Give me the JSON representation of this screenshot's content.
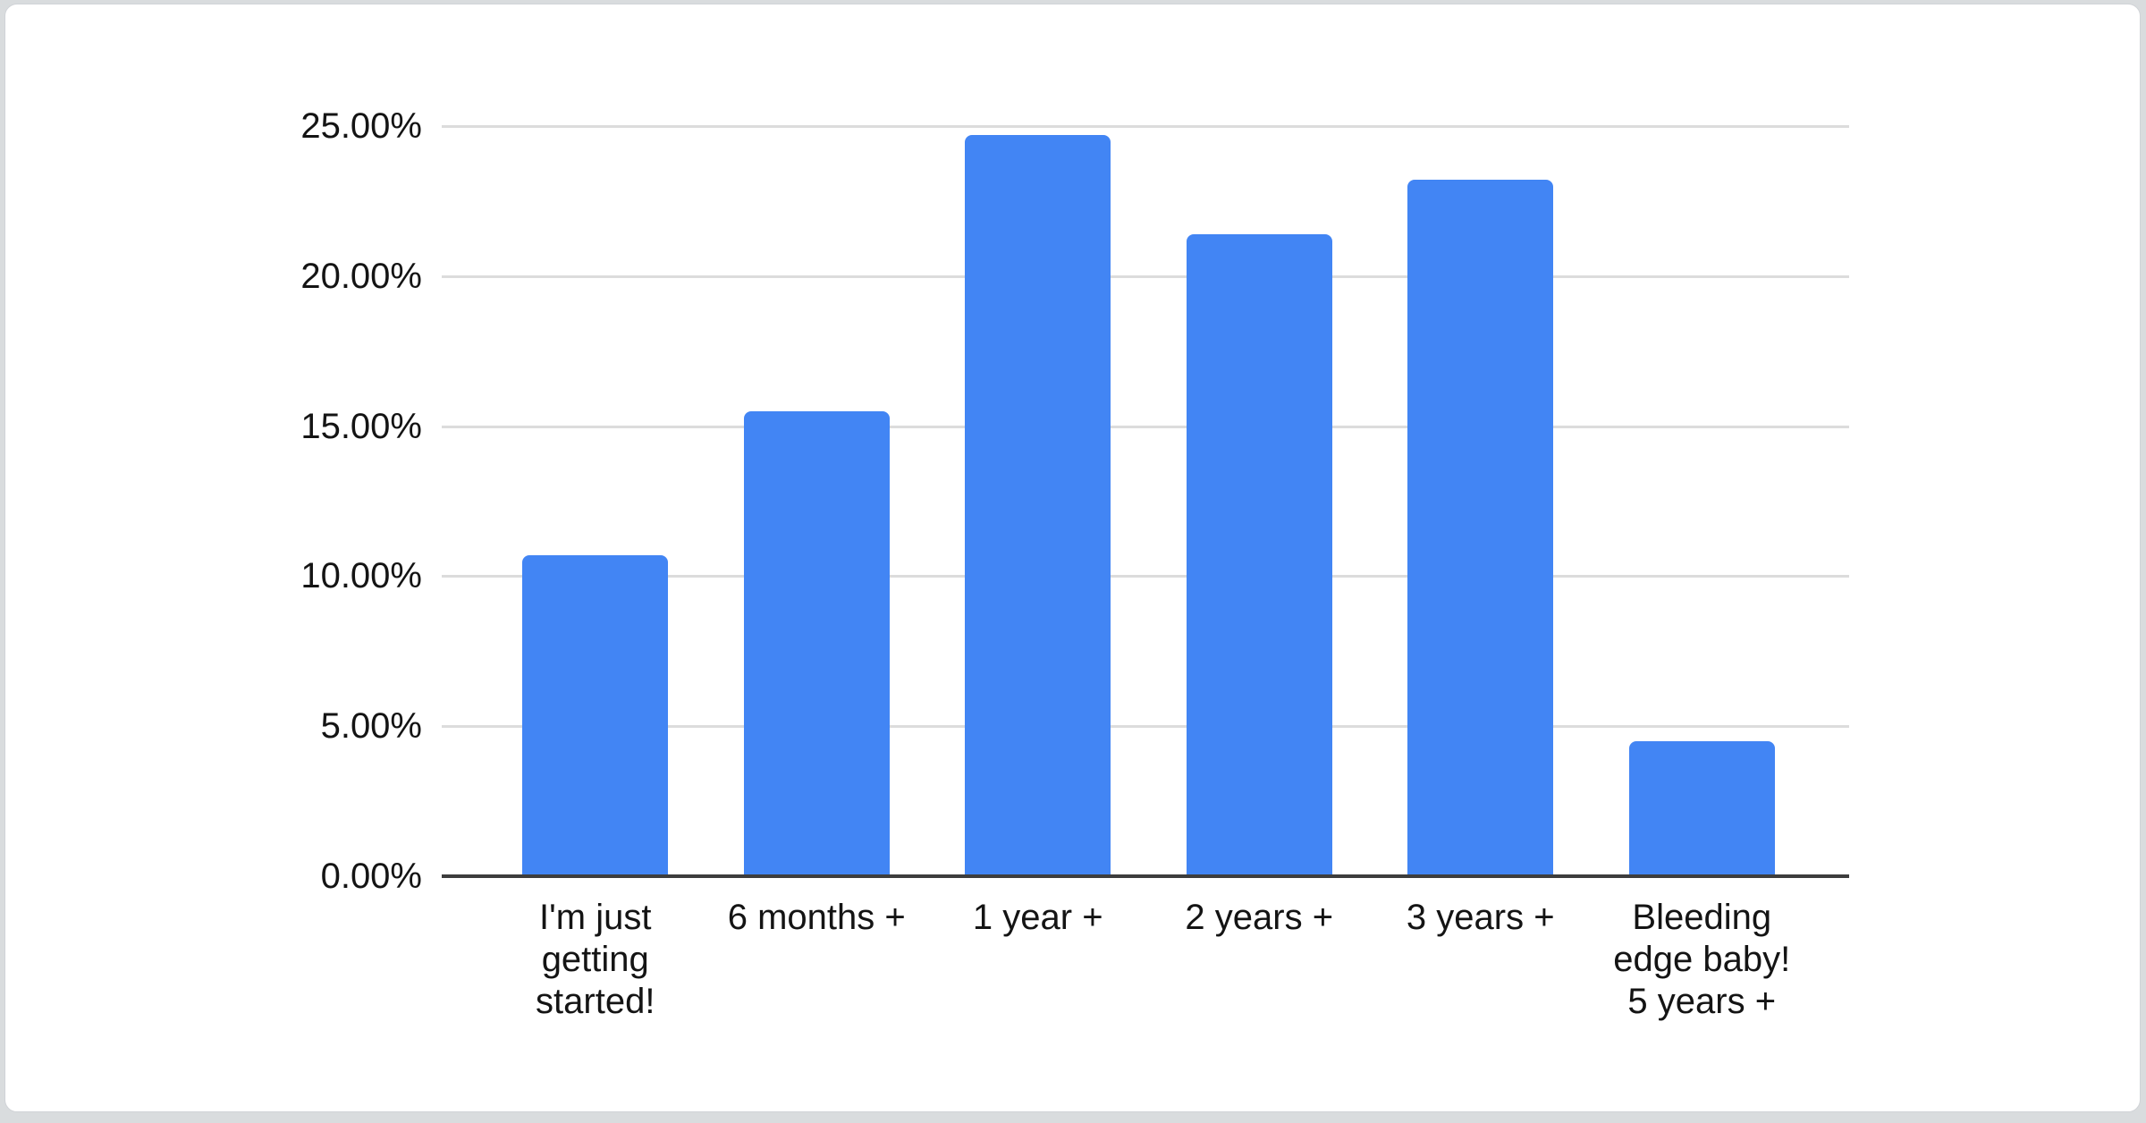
{
  "page": {
    "background_color": "#d9dcde",
    "card_background_color": "#ffffff",
    "card_border_color": "#d0d3d7"
  },
  "chart_data": {
    "type": "bar",
    "title": "",
    "categories": [
      "I'm just getting started!",
      "6 months +",
      "1 year +",
      "2 years +",
      "3 years +",
      "Bleeding edge baby! 5 years +"
    ],
    "category_label_lines": [
      [
        "I'm just",
        "getting",
        "started!"
      ],
      [
        "6 months +"
      ],
      [
        "1 year +"
      ],
      [
        "2 years +"
      ],
      [
        "3 years +"
      ],
      [
        "Bleeding",
        "edge baby!",
        "5 years +"
      ]
    ],
    "values": [
      10.7,
      15.5,
      24.7,
      21.4,
      23.2,
      4.5
    ],
    "value_unit": "%",
    "xlabel": "",
    "ylabel": "",
    "ylim": [
      0,
      25
    ],
    "ytick_step": 5,
    "ytick_labels": [
      "0.00%",
      "5.00%",
      "10.00%",
      "15.00%",
      "20.00%",
      "25.00%"
    ],
    "grid": true,
    "legend": "none",
    "bar_color": "#4285f4",
    "gridline_color": "#dcdcdc",
    "axis_line_color": "#3d3d3d",
    "label_color": "#141414"
  }
}
